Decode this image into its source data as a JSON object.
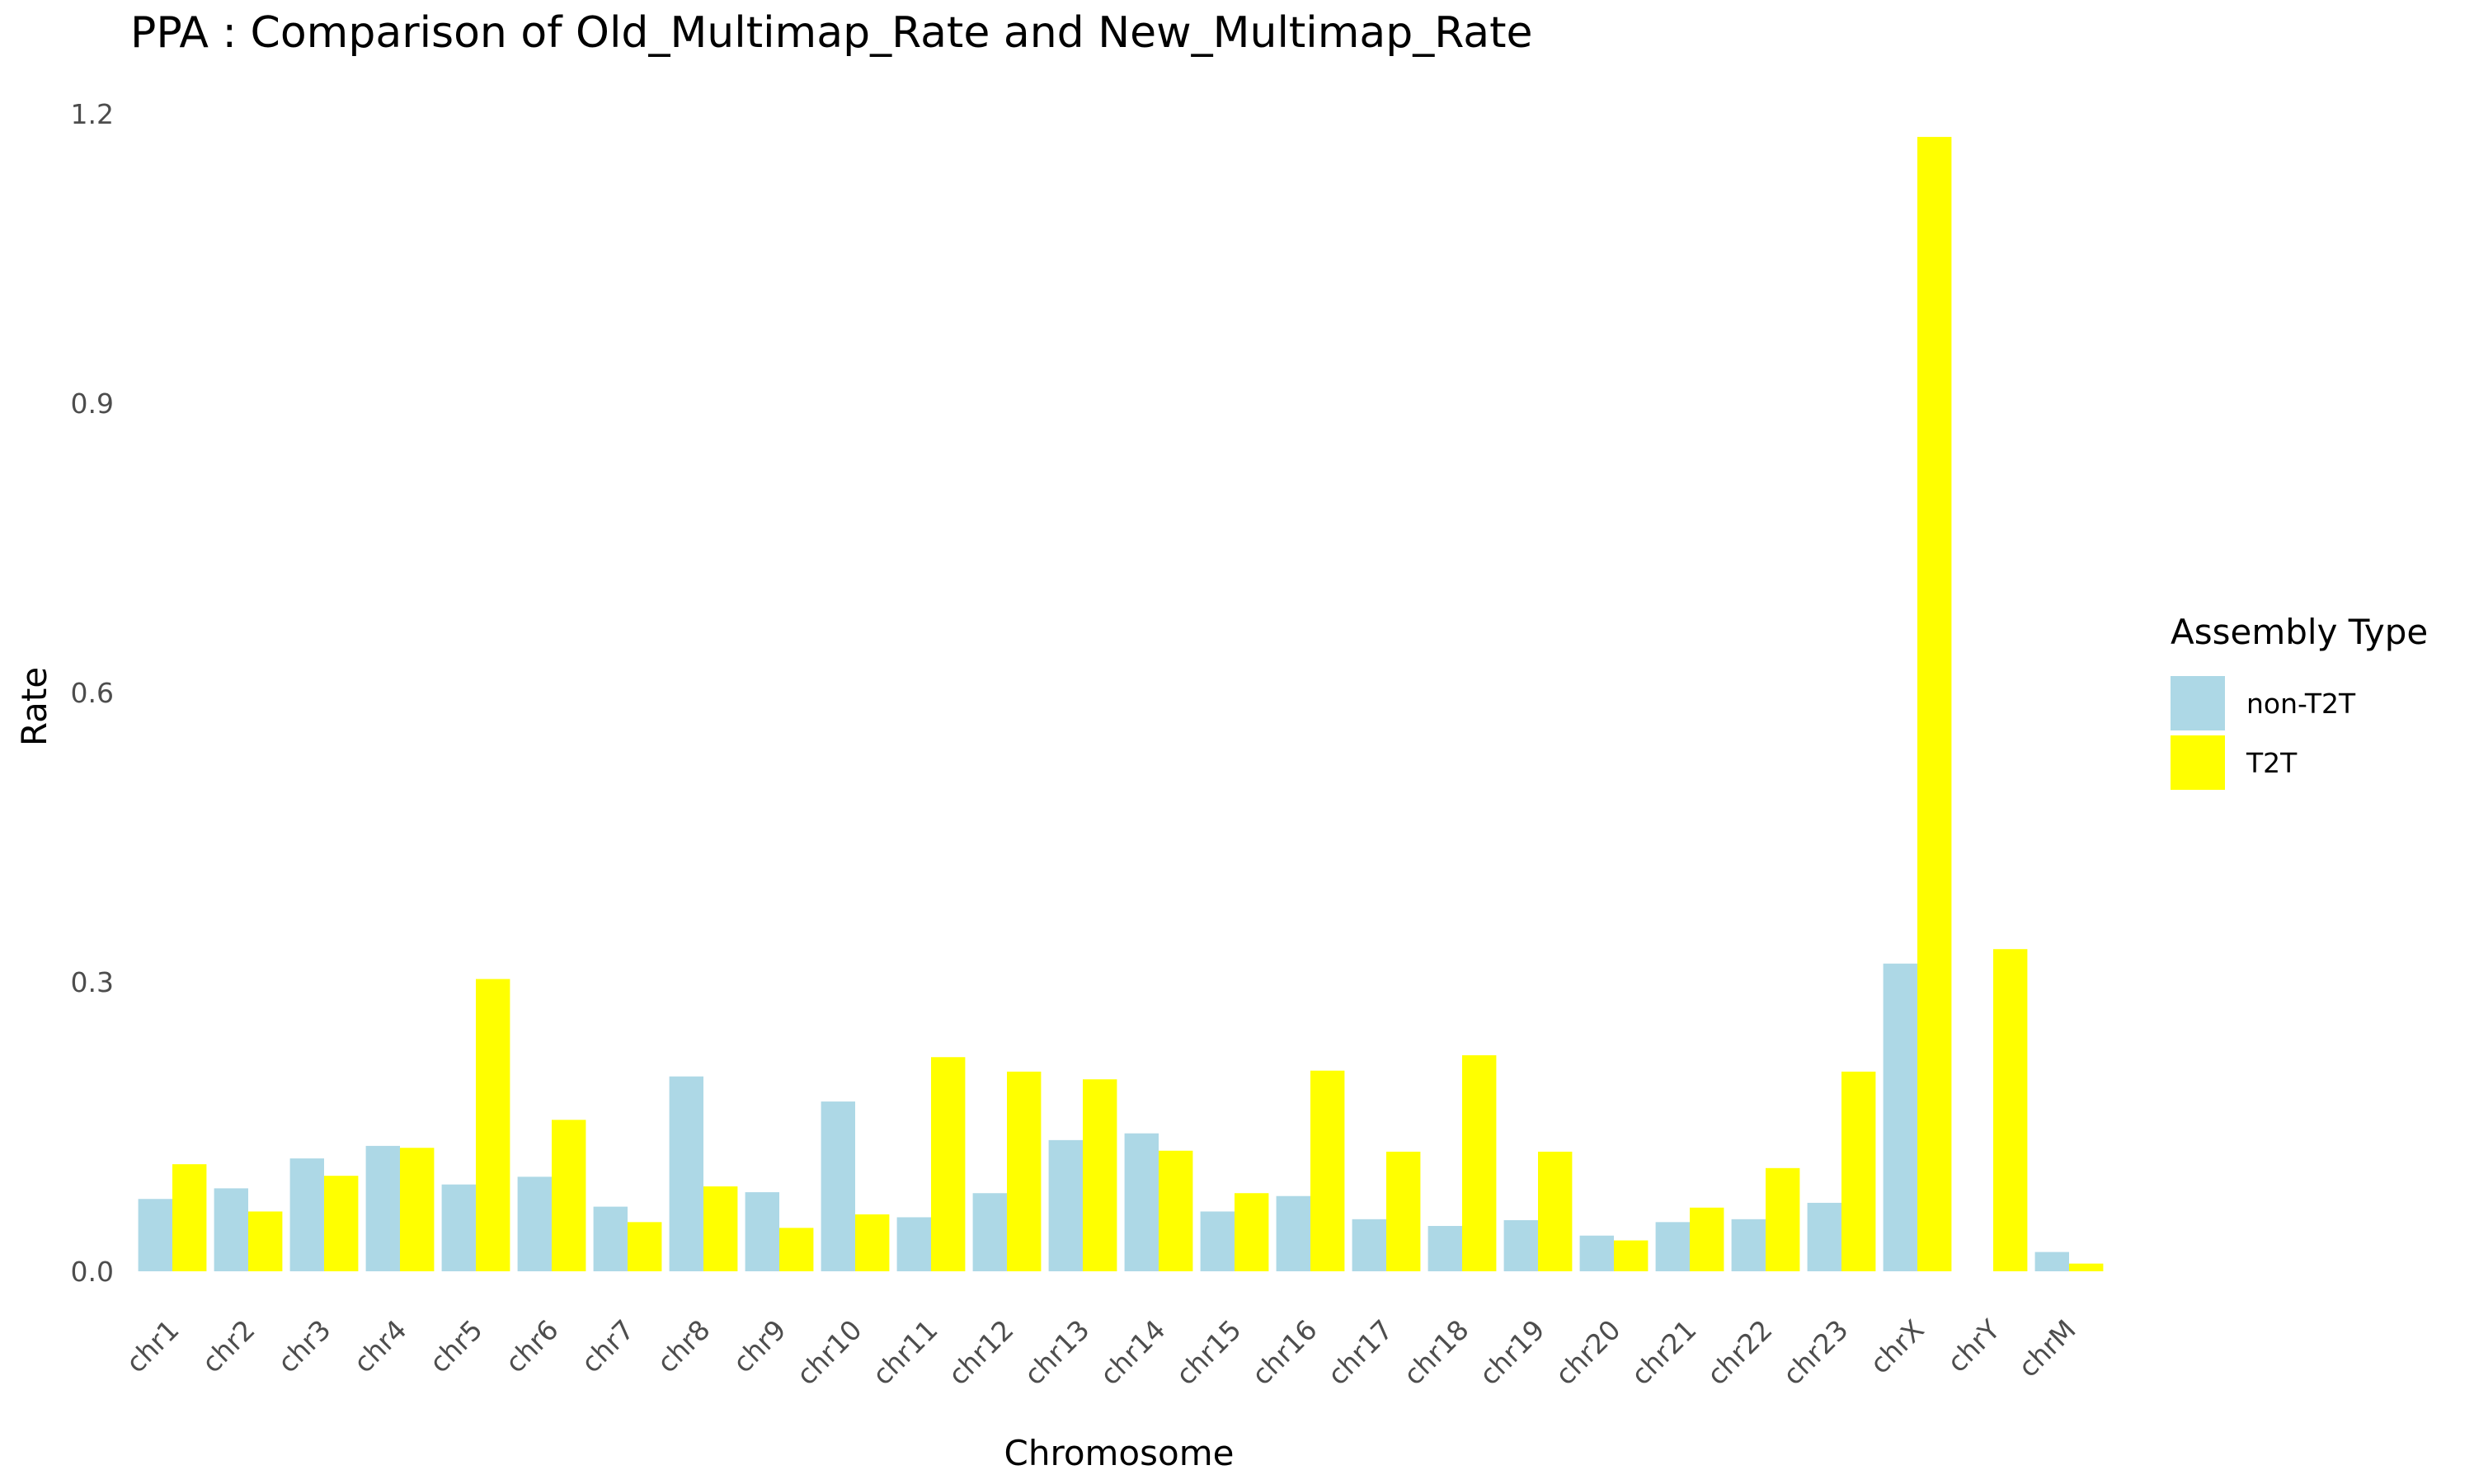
{
  "chart_data": {
    "type": "bar",
    "title": "PPA : Comparison of Old_Multimap_Rate and New_Multimap_Rate",
    "xlabel": "Chromosome",
    "ylabel": "Rate",
    "ylim": [
      -0.04,
      1.2
    ],
    "yticks": [
      0.0,
      0.3,
      0.6,
      0.9,
      1.2
    ],
    "ytick_labels": [
      "0.0",
      "0.3",
      "0.6",
      "0.9",
      "1.2"
    ],
    "grid": false,
    "legend_position": "right",
    "legend_title": "Assembly Type",
    "categories": [
      "chr1",
      "chr2",
      "chr3",
      "chr4",
      "chr5",
      "chr6",
      "chr7",
      "chr8",
      "chr9",
      "chr10",
      "chr11",
      "chr12",
      "chr13",
      "chr14",
      "chr15",
      "chr16",
      "chr17",
      "chr18",
      "chr19",
      "chr20",
      "chr21",
      "chr22",
      "chr23",
      "chrX",
      "chrY",
      "chrM"
    ],
    "series": [
      {
        "name": "non-T2T",
        "color": "#ADD8E6",
        "values": [
          0.075,
          0.086,
          0.117,
          0.13,
          0.09,
          0.098,
          0.067,
          0.202,
          0.082,
          0.176,
          0.056,
          0.081,
          0.136,
          0.143,
          0.062,
          0.078,
          0.054,
          0.047,
          0.053,
          0.037,
          0.051,
          0.054,
          0.071,
          0.319,
          null,
          0.02
        ]
      },
      {
        "name": "T2T",
        "color": "#FFFF00",
        "values": [
          0.111,
          0.062,
          0.099,
          0.128,
          0.303,
          0.157,
          0.051,
          0.088,
          0.045,
          0.059,
          0.222,
          0.207,
          0.199,
          0.125,
          0.081,
          0.208,
          0.124,
          0.224,
          0.124,
          0.032,
          0.066,
          0.107,
          0.207,
          1.176,
          0.334,
          0.008
        ]
      }
    ]
  }
}
